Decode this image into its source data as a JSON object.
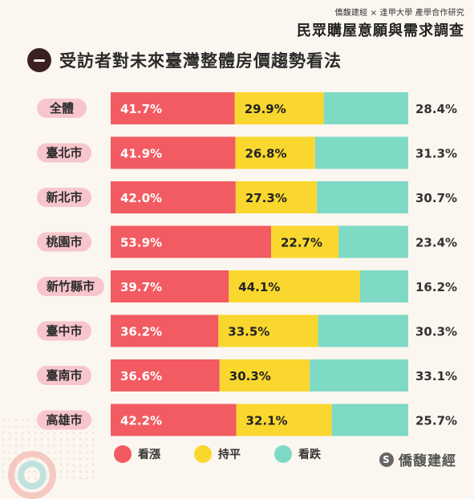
{
  "header": {
    "source": "僑馥建經 × 逢甲大學 產學合作研究",
    "survey_title": "民眾購屋意願與需求調查",
    "chart_title": "受訪者對未來臺灣整體房價趨勢看法"
  },
  "brand": {
    "name": "僑馥建經"
  },
  "chart_data": {
    "type": "bar",
    "stacked": true,
    "orientation": "horizontal",
    "unit": "%",
    "categories": [
      "全體",
      "臺北市",
      "新北市",
      "桃園市",
      "新竹縣市",
      "臺中市",
      "臺南市",
      "高雄市"
    ],
    "series": [
      {
        "name": "看漲",
        "color": "#f25b61",
        "values": [
          41.7,
          41.9,
          42.0,
          53.9,
          39.7,
          36.2,
          36.6,
          42.2
        ]
      },
      {
        "name": "持平",
        "color": "#f9d72e",
        "values": [
          29.9,
          26.8,
          27.3,
          22.7,
          44.1,
          33.5,
          30.3,
          32.1
        ]
      },
      {
        "name": "看跌",
        "color": "#7ed9c5",
        "values": [
          28.4,
          31.3,
          30.7,
          23.4,
          16.2,
          30.3,
          33.1,
          25.7
        ]
      }
    ],
    "value_labels": {
      "看漲": [
        "41.7%",
        "41.9%",
        "42.0%",
        "53.9%",
        "39.7%",
        "36.2%",
        "36.6%",
        "42.2%"
      ],
      "持平": [
        "29.9%",
        "26.8%",
        "27.3%",
        "22.7%",
        "44.1%",
        "33.5%",
        "30.3%",
        "32.1%"
      ],
      "看跌": [
        "28.4%",
        "31.3%",
        "30.7%",
        "23.4%",
        "16.2%",
        "30.3%",
        "33.1%",
        "25.7%"
      ]
    },
    "legend": {
      "placement": "bottom",
      "entries": [
        "看漲",
        "持平",
        "看跌"
      ]
    },
    "xlim": [
      0,
      100
    ],
    "grid": false,
    "category_pill_color": "#f7c6cc"
  }
}
